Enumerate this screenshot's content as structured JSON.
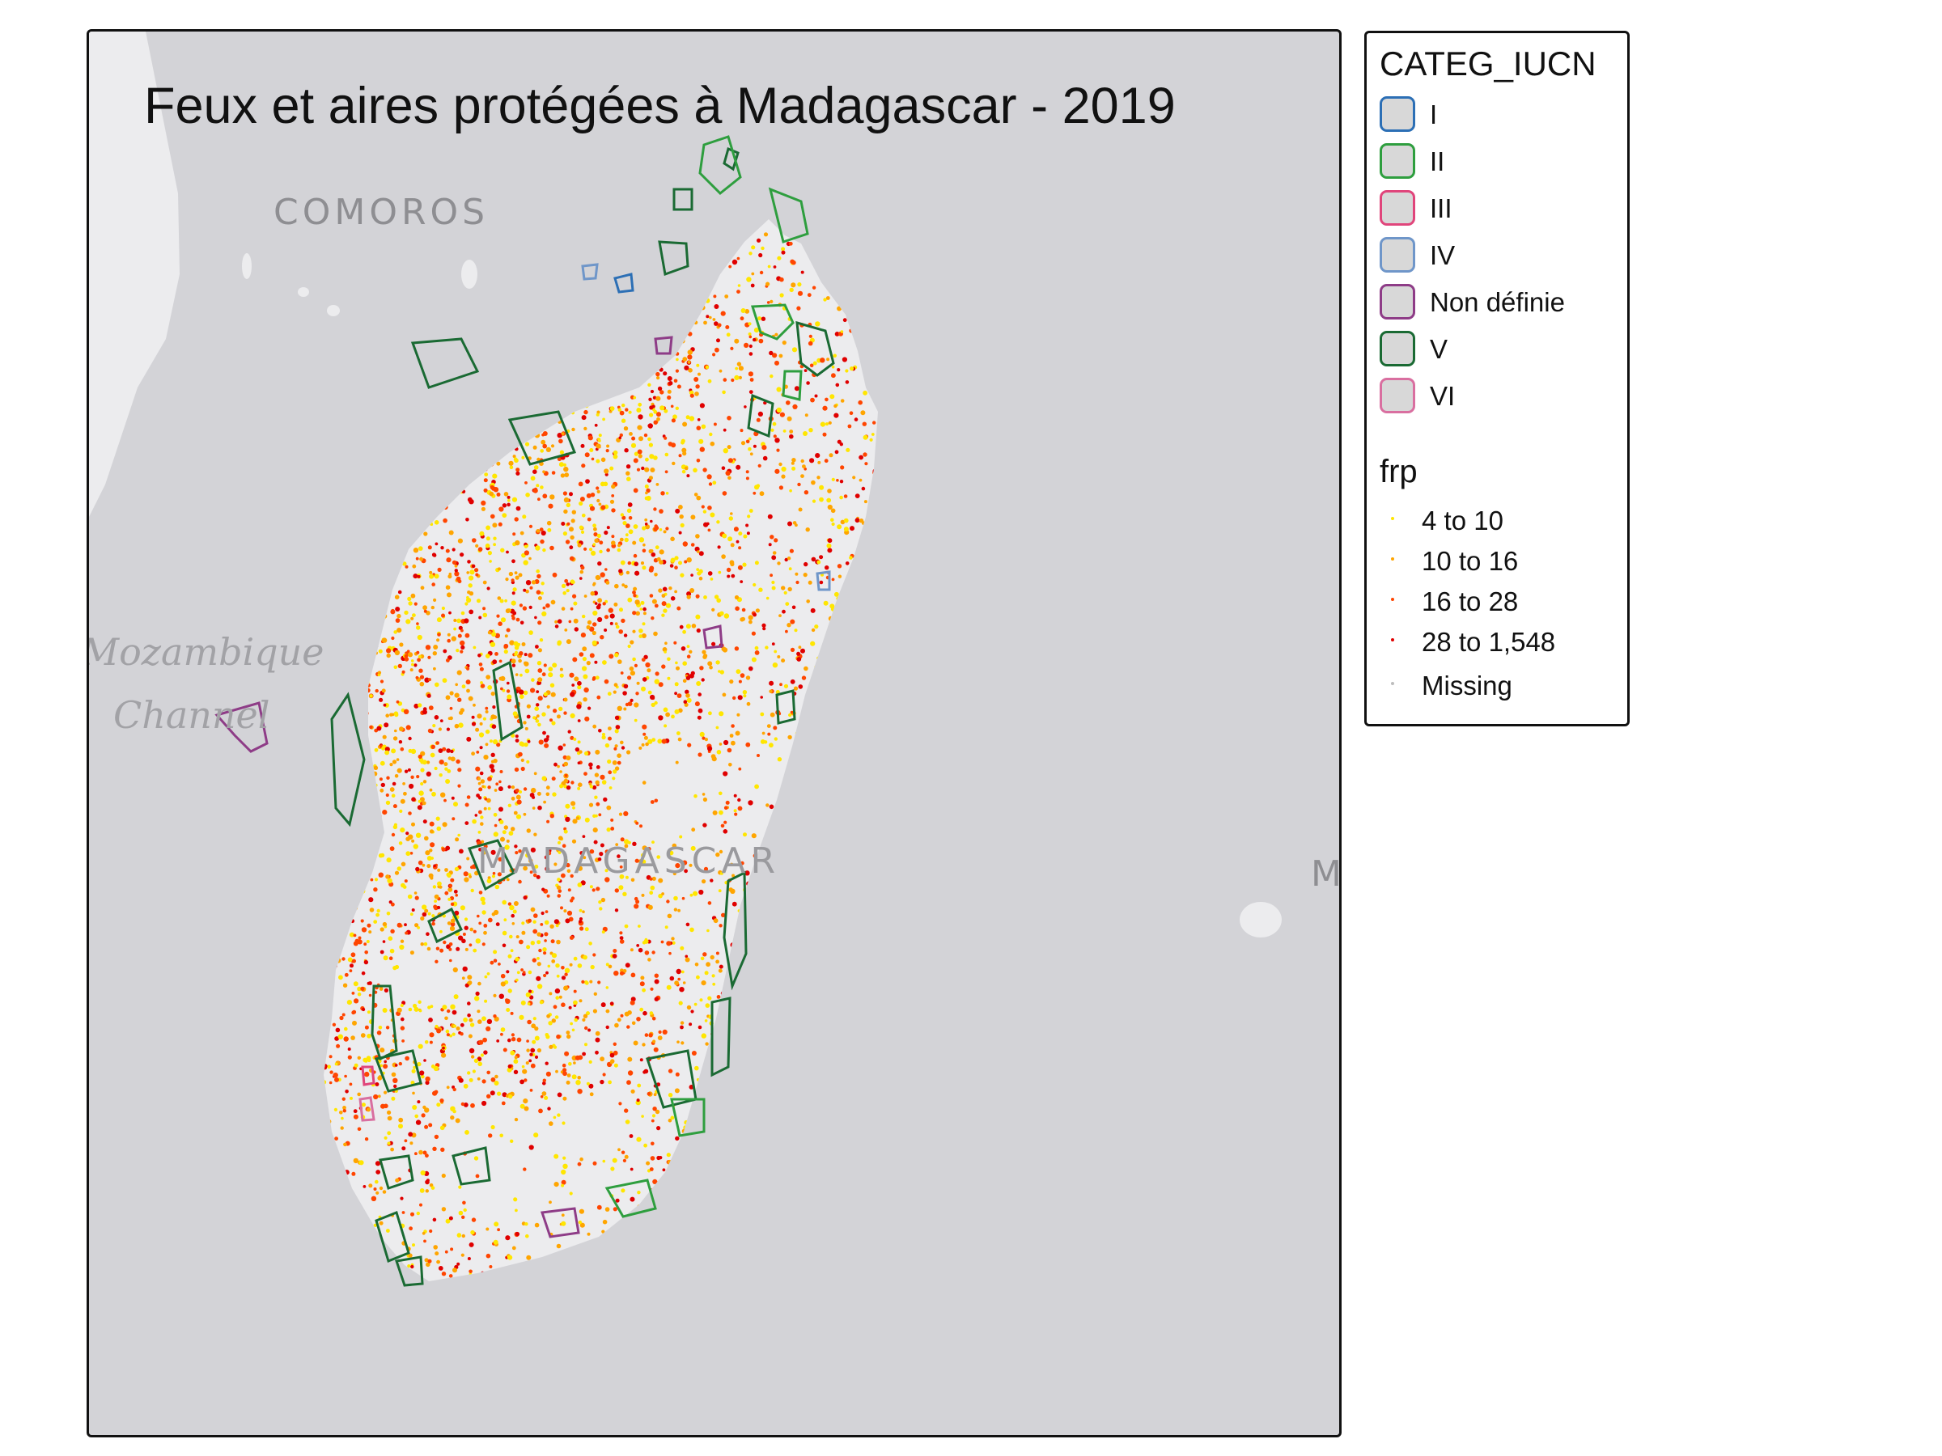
{
  "map": {
    "title": "Feux et aires protégées à Madagascar - 2019",
    "place_labels": {
      "comoros": "COMOROS",
      "mozambique_line1": "Mozambique",
      "mozambique_line2": "Channel",
      "madagascar": "MADAGASCAR",
      "mauritius_partial": "M"
    },
    "colors": {
      "sea": "#d3d3d7",
      "land": "#ececee",
      "fire_low": "#ffe600",
      "fire_mid": "#ffa500",
      "fire_high": "#ff4500",
      "fire_max": "#e00000"
    }
  },
  "legend": {
    "iucn_title": "CATEG_IUCN",
    "iucn_categories": [
      {
        "label": "I",
        "color": "#2c6fb5"
      },
      {
        "label": "II",
        "color": "#2e9e3e"
      },
      {
        "label": "III",
        "color": "#e0457b"
      },
      {
        "label": "IV",
        "color": "#6f96c9"
      },
      {
        "label": "Non définie",
        "color": "#8e3c87"
      },
      {
        "label": "V",
        "color": "#1a6a33"
      },
      {
        "label": "VI",
        "color": "#d96fa0"
      }
    ],
    "frp_title": "frp",
    "frp_classes": [
      {
        "label": "4 to 10",
        "color": "#ffe600"
      },
      {
        "label": "10 to 16",
        "color": "#ffa500"
      },
      {
        "label": "16 to 28",
        "color": "#ff4500"
      },
      {
        "label": "28 to 1,548",
        "color": "#e00000"
      },
      {
        "label": "Missing",
        "color": "#bdbdbd"
      }
    ]
  }
}
